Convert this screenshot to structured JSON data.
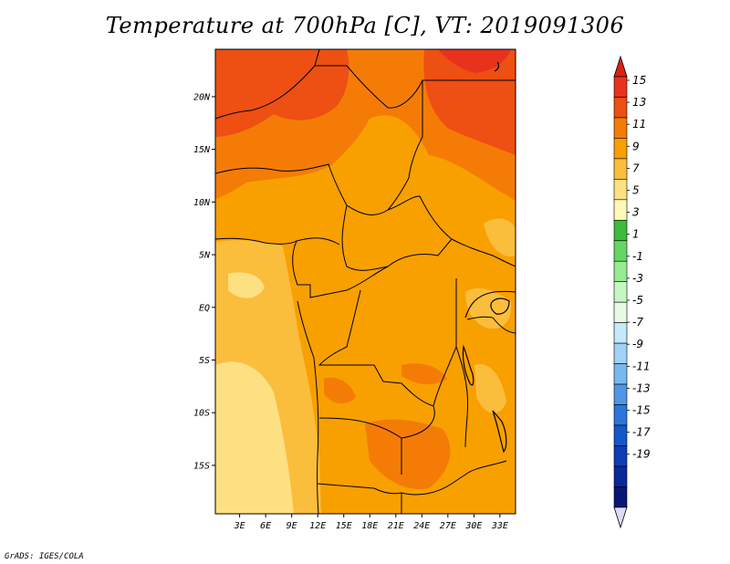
{
  "chart_data": {
    "type": "heatmap",
    "title": "Temperature at 700hPa [C], VT: 2019091306",
    "variable": "Temperature at 700hPa",
    "units": "C",
    "valid_time": "2019091306",
    "x_ticks": [
      "3E",
      "6E",
      "9E",
      "12E",
      "15E",
      "18E",
      "21E",
      "24E",
      "27E",
      "30E",
      "33E"
    ],
    "x_tick_values": [
      3,
      6,
      9,
      12,
      15,
      18,
      21,
      24,
      27,
      30,
      33
    ],
    "y_ticks": [
      "20N",
      "15N",
      "10N",
      "5N",
      "EQ",
      "5S",
      "10S",
      "15S"
    ],
    "y_tick_values": [
      20,
      15,
      10,
      5,
      0,
      -5,
      -10,
      -15
    ],
    "xlim": [
      0.2,
      34.8
    ],
    "ylim": [
      -19.6,
      24.5
    ],
    "colorbar": {
      "labels": [
        "15",
        "13",
        "11",
        "9",
        "7",
        "5",
        "3",
        "1",
        "-1",
        "-3",
        "-5",
        "-7",
        "-9",
        "-11",
        "-13",
        "-15",
        "-17",
        "-19"
      ],
      "colors": [
        "#e8321e",
        "#ee4f12",
        "#f47c06",
        "#f8a000",
        "#fbbd3c",
        "#fde082",
        "#fff8b6",
        "#3cbb3c",
        "#64d664",
        "#96eb92",
        "#c6f7c2",
        "#e6fbe6",
        "#c4e8fc",
        "#a0d2f8",
        "#78b8f0",
        "#5096e6",
        "#2c76da",
        "#1458c8",
        "#0c3eb4",
        "#0a289a",
        "#0a1676"
      ],
      "top_color": "#dc2010",
      "bottom_color": "#dcdcf8"
    }
  },
  "credit": "GrADS: IGES/COLA"
}
